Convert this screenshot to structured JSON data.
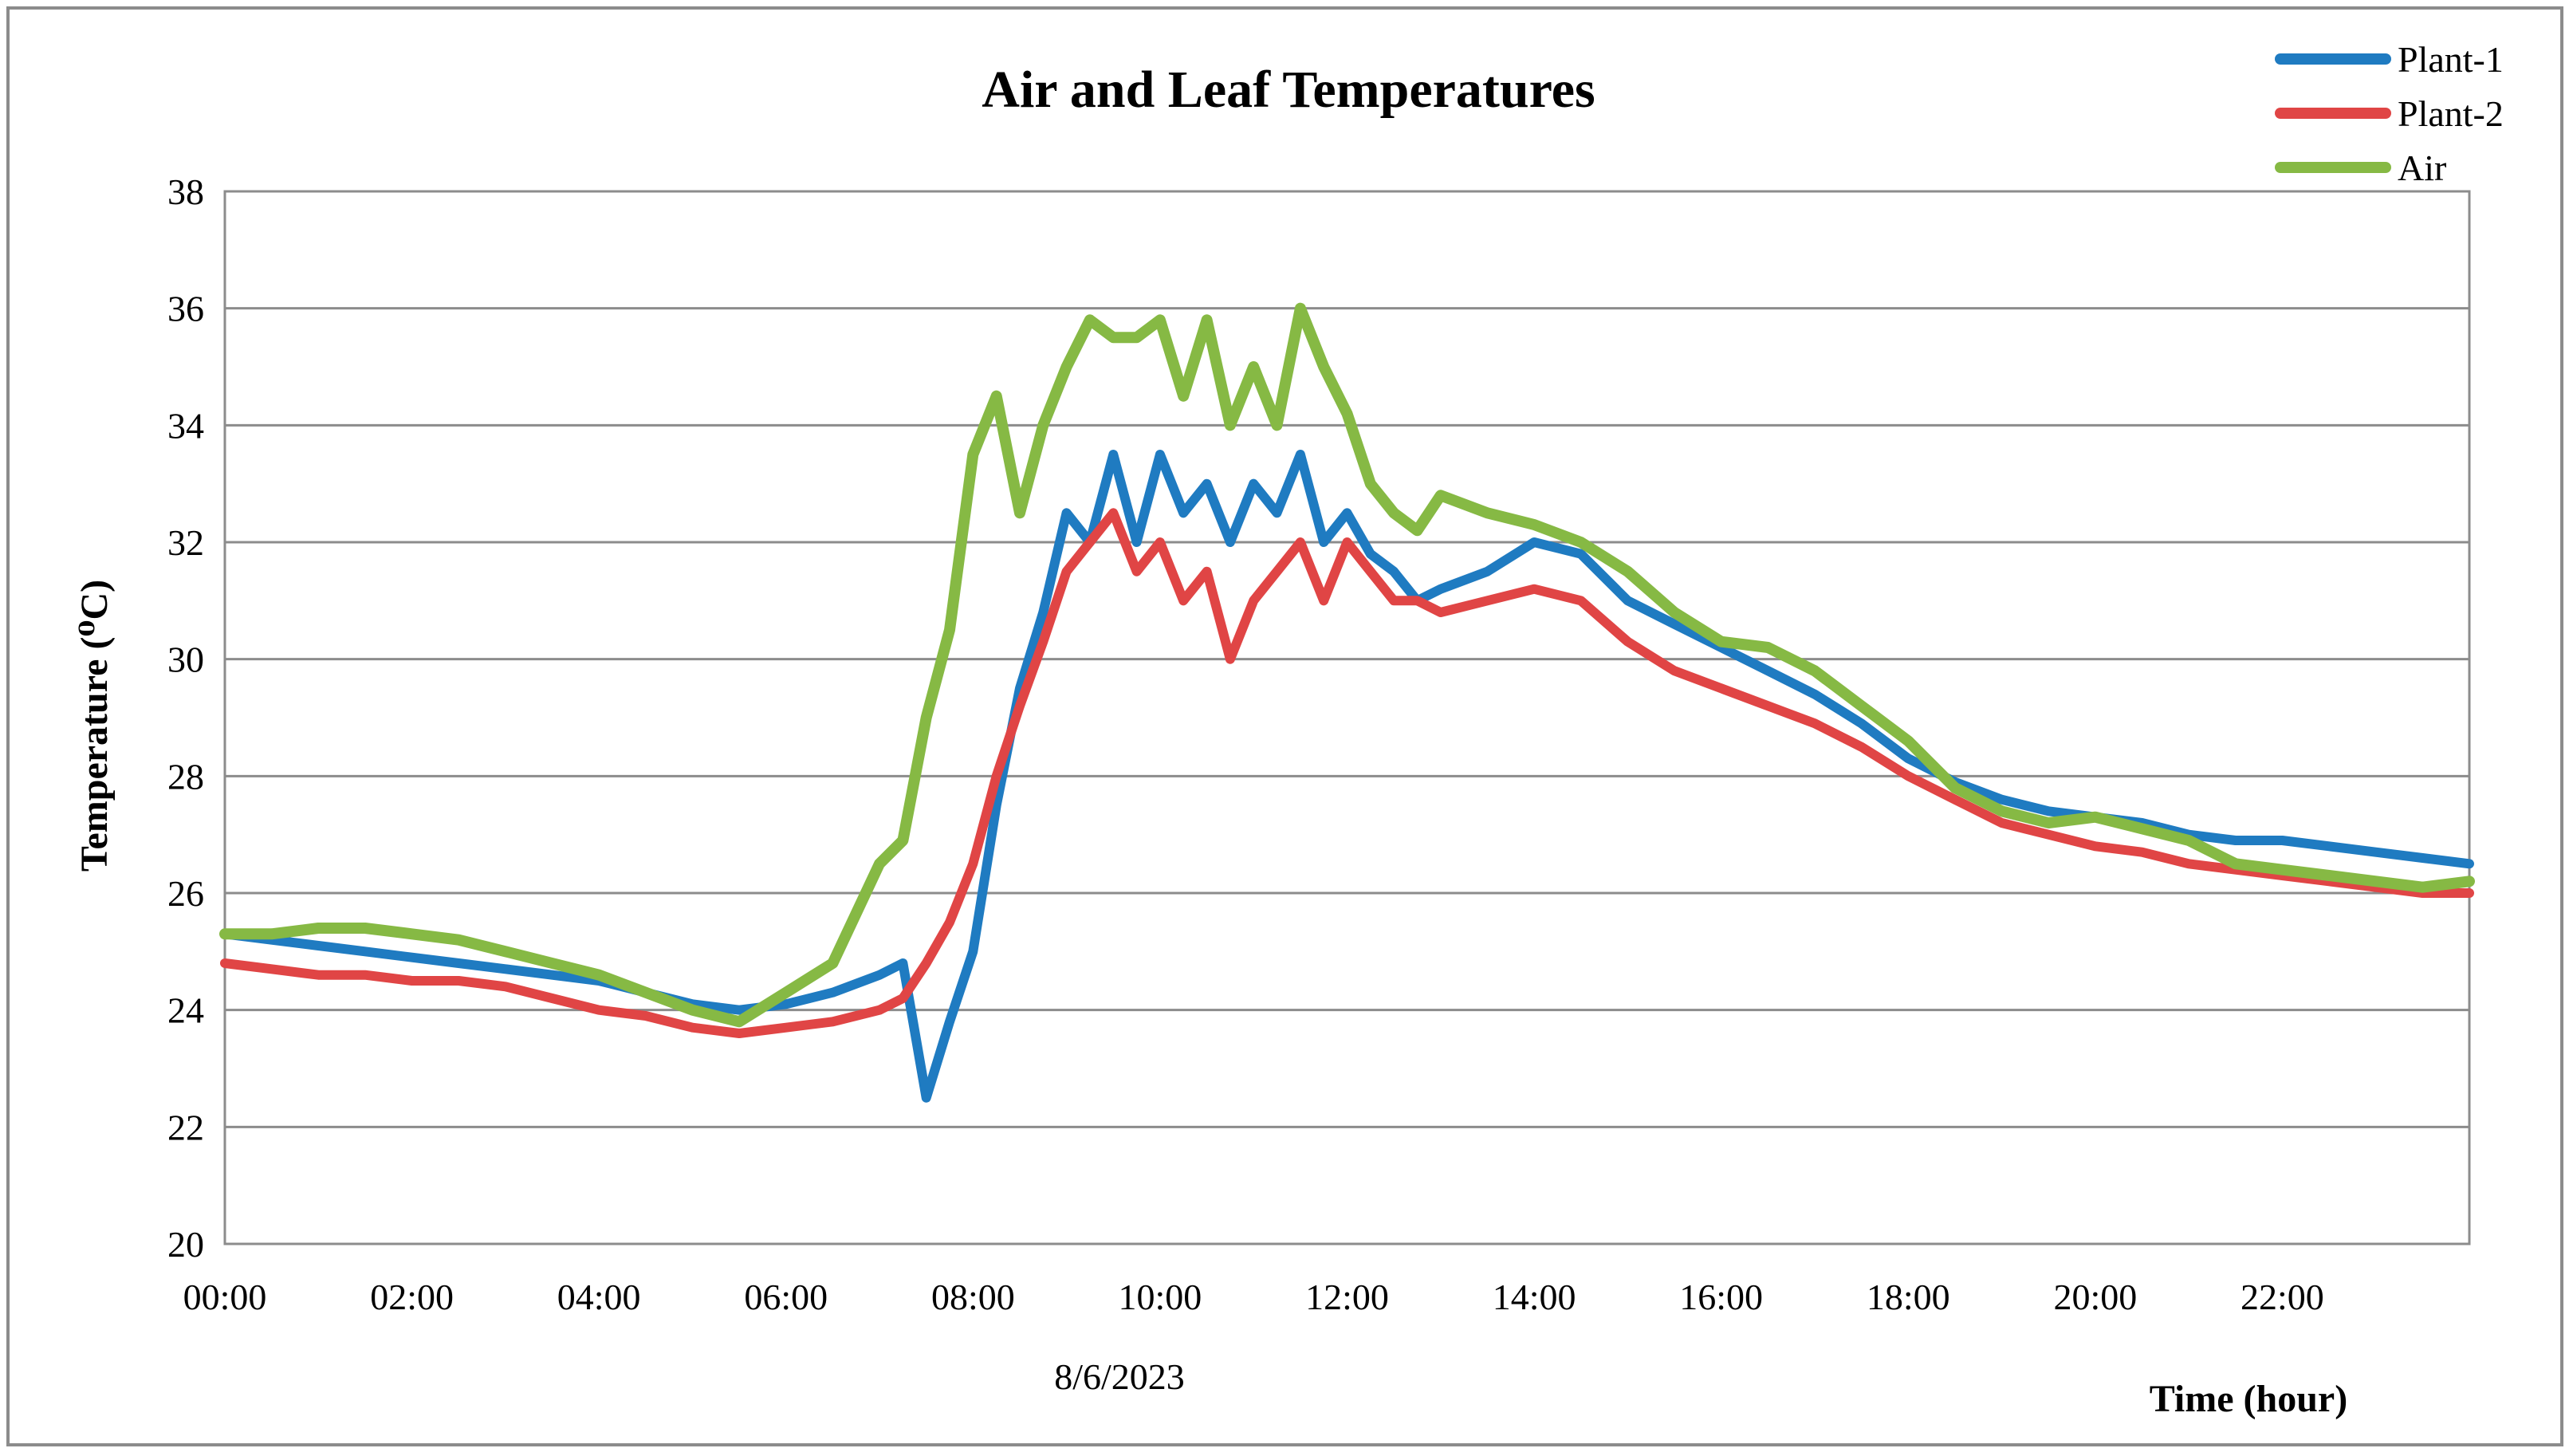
{
  "chart_data": {
    "type": "line",
    "title": "Air and Leaf Temperatures",
    "ylabel": "Temperature (⁰C)",
    "xlabel": "Time (hour)",
    "date": "8/6/2023",
    "ylim": [
      20,
      38
    ],
    "yticks": [
      20,
      22,
      24,
      26,
      28,
      30,
      32,
      34,
      36,
      38
    ],
    "xlim": [
      0,
      24
    ],
    "xticks": [
      {
        "value": 0,
        "label": "00:00"
      },
      {
        "value": 2,
        "label": "02:00"
      },
      {
        "value": 4,
        "label": "04:00"
      },
      {
        "value": 6,
        "label": "06:00"
      },
      {
        "value": 8,
        "label": "08:00"
      },
      {
        "value": 10,
        "label": "10:00"
      },
      {
        "value": 12,
        "label": "12:00"
      },
      {
        "value": 14,
        "label": "14:00"
      },
      {
        "value": 16,
        "label": "16:00"
      },
      {
        "value": 18,
        "label": "18:00"
      },
      {
        "value": 20,
        "label": "20:00"
      },
      {
        "value": 22,
        "label": "22:00"
      }
    ],
    "grid": true,
    "legend_position": "top-right",
    "x": [
      0,
      0.5,
      1,
      1.5,
      2,
      2.5,
      3,
      3.5,
      4,
      4.5,
      5,
      5.5,
      6,
      6.5,
      7,
      7.25,
      7.5,
      7.75,
      8,
      8.25,
      8.5,
      8.75,
      9,
      9.25,
      9.5,
      9.75,
      10,
      10.25,
      10.5,
      10.75,
      11,
      11.25,
      11.5,
      11.75,
      12,
      12.25,
      12.5,
      12.75,
      13,
      13.5,
      14,
      14.5,
      15,
      15.5,
      16,
      16.5,
      17,
      17.5,
      18,
      18.5,
      19,
      19.5,
      20,
      20.5,
      21,
      21.5,
      22,
      22.5,
      23,
      23.5,
      24
    ],
    "series": [
      {
        "name": "Plant-1",
        "color": "#1f7bc1",
        "values": [
          25.3,
          25.2,
          25.1,
          25.0,
          24.9,
          24.8,
          24.7,
          24.6,
          24.5,
          24.3,
          24.1,
          24.0,
          24.1,
          24.3,
          24.6,
          24.8,
          22.5,
          23.8,
          25.0,
          27.5,
          29.5,
          30.8,
          32.5,
          32.0,
          33.5,
          32.0,
          33.5,
          32.5,
          33.0,
          32.0,
          33.0,
          32.5,
          33.5,
          32.0,
          32.5,
          31.8,
          31.5,
          31.0,
          31.2,
          31.5,
          32.0,
          31.8,
          31.0,
          30.6,
          30.2,
          29.8,
          29.4,
          28.9,
          28.3,
          27.9,
          27.6,
          27.4,
          27.3,
          27.2,
          27.0,
          26.9,
          26.9,
          26.8,
          26.7,
          26.6,
          26.5
        ]
      },
      {
        "name": "Plant-2",
        "color": "#e04545",
        "values": [
          24.8,
          24.7,
          24.6,
          24.6,
          24.5,
          24.5,
          24.4,
          24.2,
          24.0,
          23.9,
          23.7,
          23.6,
          23.7,
          23.8,
          24.0,
          24.2,
          24.8,
          25.5,
          26.5,
          28.0,
          29.2,
          30.3,
          31.5,
          32.0,
          32.5,
          31.5,
          32.0,
          31.0,
          31.5,
          30.0,
          31.0,
          31.5,
          32.0,
          31.0,
          32.0,
          31.5,
          31.0,
          31.0,
          30.8,
          31.0,
          31.2,
          31.0,
          30.3,
          29.8,
          29.5,
          29.2,
          28.9,
          28.5,
          28.0,
          27.6,
          27.2,
          27.0,
          26.8,
          26.7,
          26.5,
          26.4,
          26.3,
          26.2,
          26.1,
          26.0,
          26.0
        ]
      },
      {
        "name": "Air",
        "color": "#86b944",
        "values": [
          25.3,
          25.3,
          25.4,
          25.4,
          25.3,
          25.2,
          25.0,
          24.8,
          24.6,
          24.3,
          24.0,
          23.8,
          24.3,
          24.8,
          26.5,
          26.9,
          29.0,
          30.5,
          33.5,
          34.5,
          32.5,
          34.0,
          35.0,
          35.8,
          35.5,
          35.5,
          35.8,
          34.5,
          35.8,
          34.0,
          35.0,
          34.0,
          36.0,
          35.0,
          34.2,
          33.0,
          32.5,
          32.2,
          32.8,
          32.5,
          32.3,
          32.0,
          31.5,
          30.8,
          30.3,
          30.2,
          29.8,
          29.2,
          28.6,
          27.8,
          27.4,
          27.2,
          27.3,
          27.1,
          26.9,
          26.5,
          26.4,
          26.3,
          26.2,
          26.1,
          26.2
        ]
      }
    ]
  }
}
